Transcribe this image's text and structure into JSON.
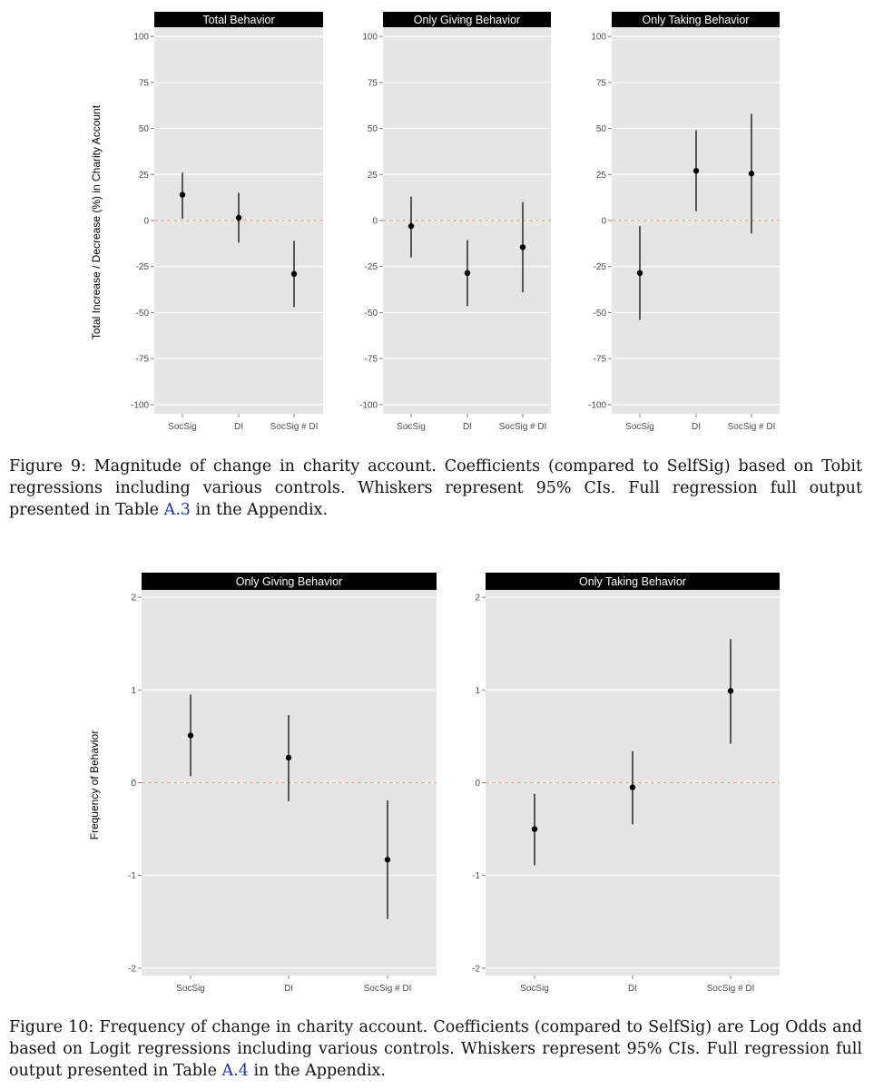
{
  "figures": [
    {
      "caption_label": "Figure 9:",
      "caption_before": "Magnitude of change in charity account. Coefficients (compared to SelfSig) based on Tobit regressions including various controls. Whiskers represent 95% CIs. Full regression full output presented in Table",
      "caption_ref": "A.3",
      "caption_after": "in the Appendix."
    },
    {
      "caption_label": "Figure 10:",
      "caption_before": "Frequency of change in charity account. Coefficients (compared to SelfSig) are Log Odds and based on Logit regressions including various controls. Whiskers represent 95% CIs. Full regression full output presented in Table",
      "caption_ref": "A.4",
      "caption_after": "in the Appendix."
    }
  ],
  "chart_data": [
    {
      "type": "scatter",
      "figure": "Figure 9",
      "title": "Total Behavior",
      "ylabel": "Total Increase / Decrease (%) in Charity Account",
      "xlabel": "",
      "categories": [
        "SocSig",
        "DI",
        "SocSig # DI"
      ],
      "ylim": [
        -105,
        105
      ],
      "yticks": [
        100,
        75,
        50,
        25,
        0,
        -25,
        -50,
        -75,
        -100
      ],
      "ytick_labels": [
        "100",
        "75",
        "50",
        "25",
        "0",
        "-25",
        "-50",
        "-75",
        "-100"
      ],
      "reference_line": 0,
      "points": [
        {
          "x": "SocSig",
          "estimate": 14,
          "ci_low": 1,
          "ci_high": 26
        },
        {
          "x": "DI",
          "estimate": 1.5,
          "ci_low": -12,
          "ci_high": 15
        },
        {
          "x": "SocSig # DI",
          "estimate": -29,
          "ci_low": -47,
          "ci_high": -11
        }
      ]
    },
    {
      "type": "scatter",
      "figure": "Figure 9",
      "title": "Only Giving Behavior",
      "ylabel": "",
      "xlabel": "",
      "categories": [
        "SocSig",
        "DI",
        "SocSig # DI"
      ],
      "ylim": [
        -105,
        105
      ],
      "yticks": [
        100,
        75,
        50,
        25,
        0,
        -25,
        -50,
        -75,
        -100
      ],
      "ytick_labels": [
        "100",
        "75",
        "50",
        "25",
        "0",
        "-25",
        "-50",
        "-75",
        "-100"
      ],
      "reference_line": 0,
      "points": [
        {
          "x": "SocSig",
          "estimate": -3,
          "ci_low": -20,
          "ci_high": 13
        },
        {
          "x": "DI",
          "estimate": -28.5,
          "ci_low": -46.5,
          "ci_high": -10.5
        },
        {
          "x": "SocSig # DI",
          "estimate": -14.5,
          "ci_low": -39,
          "ci_high": 10
        }
      ]
    },
    {
      "type": "scatter",
      "figure": "Figure 9",
      "title": "Only Taking Behavior",
      "ylabel": "",
      "xlabel": "",
      "categories": [
        "SocSig",
        "DI",
        "SocSig # DI"
      ],
      "ylim": [
        -105,
        105
      ],
      "yticks": [
        100,
        75,
        50,
        25,
        0,
        -25,
        -50,
        -75,
        -100
      ],
      "ytick_labels": [
        "100",
        "75",
        "50",
        "25",
        "0",
        "-25",
        "-50",
        "-75",
        "-100"
      ],
      "reference_line": 0,
      "points": [
        {
          "x": "SocSig",
          "estimate": -28.5,
          "ci_low": -54,
          "ci_high": -3
        },
        {
          "x": "DI",
          "estimate": 27,
          "ci_low": 5,
          "ci_high": 49
        },
        {
          "x": "SocSig # DI",
          "estimate": 25.5,
          "ci_low": -7,
          "ci_high": 58
        }
      ]
    },
    {
      "type": "scatter",
      "figure": "Figure 10",
      "title": "Only Giving Behavior",
      "ylabel": "Frequency of Behavior",
      "xlabel": "",
      "categories": [
        "SocSig",
        "DI",
        "SocSig # DI"
      ],
      "ylim": [
        -2.08,
        2.08
      ],
      "yticks": [
        2,
        1,
        0,
        -1,
        -2
      ],
      "ytick_labels": [
        "2",
        "1",
        "0",
        "-1",
        "-2"
      ],
      "reference_line": 0,
      "points": [
        {
          "x": "SocSig",
          "estimate": 0.51,
          "ci_low": 0.07,
          "ci_high": 0.95
        },
        {
          "x": "DI",
          "estimate": 0.27,
          "ci_low": -0.2,
          "ci_high": 0.73
        },
        {
          "x": "SocSig # DI",
          "estimate": -0.83,
          "ci_low": -1.47,
          "ci_high": -0.19
        }
      ]
    },
    {
      "type": "scatter",
      "figure": "Figure 10",
      "title": "Only Taking Behavior",
      "ylabel": "",
      "xlabel": "",
      "categories": [
        "SocSig",
        "DI",
        "SocSig # DI"
      ],
      "ylim": [
        -2.08,
        2.08
      ],
      "yticks": [
        2,
        1,
        0,
        -1,
        -2
      ],
      "ytick_labels": [
        "2",
        "1",
        "0",
        "-1",
        "-2"
      ],
      "reference_line": 0,
      "points": [
        {
          "x": "SocSig",
          "estimate": -0.5,
          "ci_low": -0.89,
          "ci_high": -0.12
        },
        {
          "x": "DI",
          "estimate": -0.05,
          "ci_low": -0.45,
          "ci_high": 0.34
        },
        {
          "x": "SocSig # DI",
          "estimate": 0.99,
          "ci_low": 0.42,
          "ci_high": 1.55
        }
      ]
    }
  ],
  "colors": {
    "panel_bg": "#e5e5e5",
    "grid": "#ffffff",
    "strip_bg": "#000000",
    "strip_text": "#ffffff",
    "reference_line": "#f2a29a",
    "point": "#000000",
    "whisker": "#1a1a1a"
  }
}
